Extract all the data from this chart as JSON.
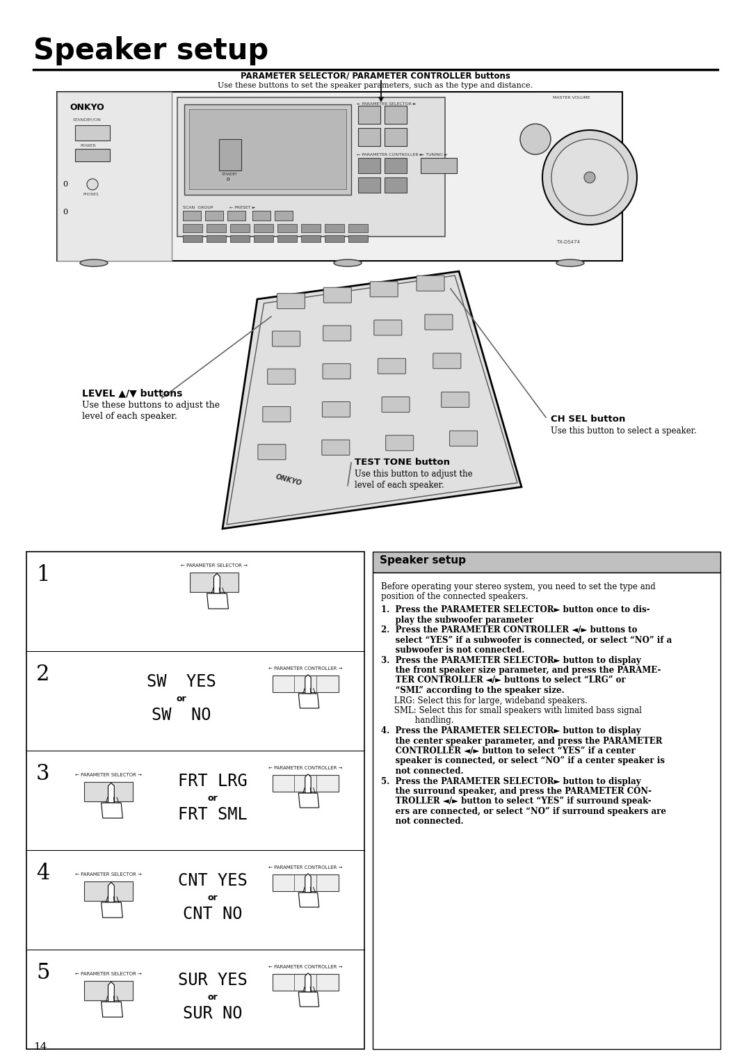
{
  "title": "Speaker setup",
  "bg_color": "#ffffff",
  "page_number": "14",
  "param_selector_label": "PARAMETER SELECTOR/ PARAMETER CONTROLLER buttons",
  "param_selector_desc": "Use these buttons to set the speaker parameters, such as the type and distance.",
  "level_button_label": "LEVEL ▲/▼ buttons",
  "level_desc1": "Use these buttons to adjust the",
  "level_desc2": "level of each speaker.",
  "ch_sel_label": "CH SEL button",
  "ch_sel_desc": "Use this button to select a speaker.",
  "test_tone_label": "TEST TONE button",
  "test_tone_desc1": "Use this button to adjust the",
  "test_tone_desc2": "level of each speaker.",
  "speaker_setup_box_title": "Speaker setup",
  "intro_line1": "Before operating your stereo system, you need to set the type and",
  "intro_line2": "position of the connected speakers.",
  "step1_bold1": "1.  Press the PARAMETER SELECTOR► button once to dis-",
  "step1_bold2": "     play the subwoofer parameter",
  "step2_bold1": "2.  Press the PARAMETER CONTROLLER ◄/► buttons to",
  "step2_bold2": "     select “YES” if a subwoofer is connected, or select “NO” if a",
  "step2_bold3": "     subwoofer is not connected.",
  "step3_bold1": "3.  Press the PARAMETER SELECTOR► button to display",
  "step3_bold2": "     the front speaker size parameter, and press the PARAME-",
  "step3_bold3": "     TER CONTROLLER ◄/► buttons to select “LRG” or",
  "step3_bold4": "     “SML” according to the speaker size.",
  "step3_norm1": "     LRG: Select this for large, wideband speakers.",
  "step3_norm2": "     SML: Select this for small speakers with limited bass signal",
  "step3_norm3": "             handling.",
  "step4_bold1": "4.  Press the PARAMETER SELECTOR► button to display",
  "step4_bold2": "     the center speaker parameter, and press the PARAMETER",
  "step4_bold3": "     CONTROLLER ◄/► button to select “YES” if a center",
  "step4_bold4": "     speaker is connected, or select “NO” if a center speaker is",
  "step4_bold5": "     not connected.",
  "step5_bold1": "5.  Press the PARAMETER SELECTOR► button to display",
  "step5_bold2": "     the surround speaker, and press the PARAMETER CON-",
  "step5_bold3": "     TROLLER ◄/► button to select “YES” if surround speak-",
  "step5_bold4": "     ers are connected, or select “NO” if surround speakers are",
  "step5_bold5": "     not connected.",
  "left_steps": [
    {
      "num": "1",
      "lcd1": "",
      "lcd2": "",
      "has_sel": false,
      "step1_only": true,
      "has_ctrl": false
    },
    {
      "num": "2",
      "lcd1": "SW  YES",
      "lcd2": "SW  NO",
      "has_sel": false,
      "step1_only": false,
      "has_ctrl": true
    },
    {
      "num": "3",
      "lcd1": "FRT LRG",
      "lcd2": "FRT SML",
      "has_sel": true,
      "step1_only": false,
      "has_ctrl": true
    },
    {
      "num": "4",
      "lcd1": "CNT YES",
      "lcd2": "CNT NO",
      "has_sel": true,
      "step1_only": false,
      "has_ctrl": true
    },
    {
      "num": "5",
      "lcd1": "SUR YES",
      "lcd2": "SUR NO",
      "has_sel": true,
      "step1_only": false,
      "has_ctrl": true
    }
  ]
}
